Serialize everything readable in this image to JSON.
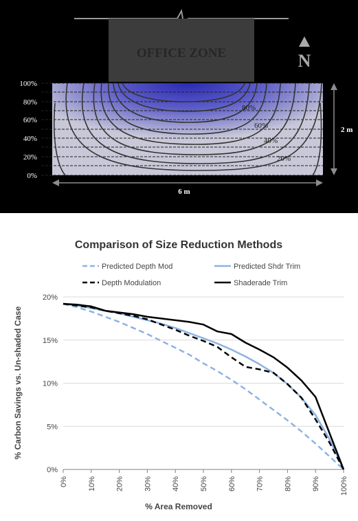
{
  "diagram": {
    "office_label": "OFFICE ZONE",
    "north_label": "N",
    "y_ticks": [
      "100%",
      "80%",
      "60%",
      "40%",
      "20%",
      "0%"
    ],
    "contour_labels": [
      "80%",
      "60%",
      "40%",
      "20%"
    ],
    "width_label": "6 m",
    "height_label": "2 m",
    "colors": {
      "background": "#000000",
      "office": "#3c3c3c",
      "shade": "#2a2ab4",
      "contour": "#333333"
    }
  },
  "chart_data": {
    "type": "line",
    "title": "Comparison of Size Reduction Methods",
    "xlabel": "% Area Removed",
    "ylabel": "% Carbon Savings vs. Un-shaded Case",
    "x": [
      0,
      5,
      10,
      15,
      20,
      25,
      30,
      35,
      40,
      45,
      50,
      55,
      60,
      65,
      70,
      75,
      80,
      85,
      90,
      95,
      100
    ],
    "x_tick_labels": [
      "0%",
      "10%",
      "20%",
      "30%",
      "40%",
      "50%",
      "60%",
      "70%",
      "80%",
      "90%",
      "100%"
    ],
    "x_ticks": [
      0,
      10,
      20,
      30,
      40,
      50,
      60,
      70,
      80,
      90,
      100
    ],
    "ylim": [
      0,
      20
    ],
    "y_ticks": [
      0,
      5,
      10,
      15,
      20
    ],
    "y_tick_labels": [
      "0%",
      "5%",
      "10%",
      "15%",
      "20%"
    ],
    "grid": "horizontal",
    "legend_position": "top",
    "series": [
      {
        "name": "Predicted Depth Mod",
        "color": "#8db3e2",
        "dash": "dashed",
        "values": [
          19.2,
          18.8,
          18.3,
          17.7,
          17.1,
          16.4,
          15.7,
          14.9,
          14.1,
          13.3,
          12.3,
          11.4,
          10.4,
          9.3,
          8.1,
          6.9,
          5.7,
          4.4,
          3.0,
          1.5,
          0
        ]
      },
      {
        "name": "Predicted Shdr Trim",
        "color": "#8db3e2",
        "dash": "solid",
        "values": [
          19.2,
          19.0,
          18.7,
          18.4,
          18.1,
          17.7,
          17.3,
          16.9,
          16.4,
          15.8,
          15.2,
          14.6,
          13.9,
          13.1,
          12.2,
          11.2,
          9.9,
          8.3,
          6.3,
          3.5,
          0
        ]
      },
      {
        "name": "Depth Modulation",
        "color": "#000000",
        "dash": "dashed",
        "values": [
          19.2,
          19.0,
          18.8,
          18.4,
          18.1,
          17.8,
          17.4,
          16.8,
          16.2,
          15.5,
          14.9,
          14.2,
          13.0,
          11.9,
          11.6,
          11.2,
          9.9,
          8.3,
          5.8,
          3.1,
          0
        ]
      },
      {
        "name": "Shaderade Trim",
        "color": "#000000",
        "dash": "solid",
        "values": [
          19.2,
          19.1,
          18.9,
          18.4,
          18.2,
          18.0,
          17.7,
          17.5,
          17.3,
          17.1,
          16.8,
          16.0,
          15.7,
          14.7,
          13.9,
          13.0,
          11.8,
          10.3,
          8.4,
          4.2,
          0
        ]
      }
    ]
  }
}
